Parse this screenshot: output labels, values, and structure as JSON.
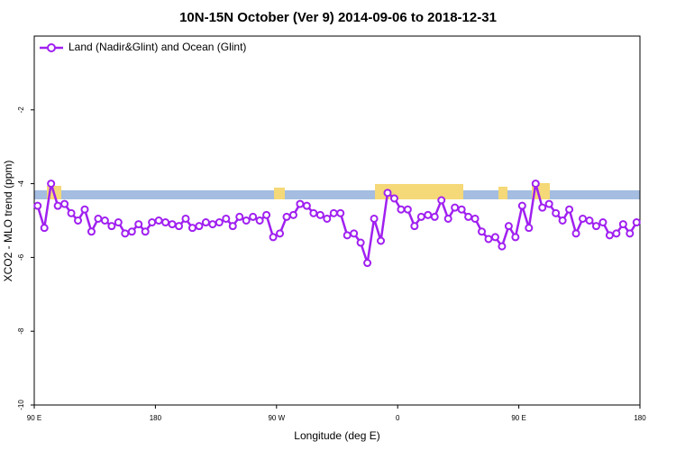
{
  "chart_data": {
    "type": "line",
    "title": "10N-15N October (Ver 9)   2014-09-06 to 2018-12-31",
    "x_label": "Longitude (deg E)",
    "y_label": "XCO2 - MLO trend (ppm)",
    "xlim": [
      90,
      540
    ],
    "xticks": [
      {
        "value": 90,
        "label": "90 E"
      },
      180,
      {
        "value": 270,
        "label": "90 W"
      },
      {
        "value": 360,
        "label": "0"
      },
      {
        "value": 450,
        "label": "90 E"
      },
      {
        "value": 540,
        "label": "180"
      }
    ],
    "ylim": [
      -10,
      0
    ],
    "yticks": [
      -10,
      -8,
      -6,
      -4,
      -2
    ],
    "legend": "top-left",
    "x": [
      92.5,
      97.5,
      102.5,
      107.5,
      112.5,
      117.5,
      122.5,
      127.5,
      132.5,
      137.5,
      142.5,
      147.5,
      152.5,
      157.5,
      162.5,
      167.5,
      172.5,
      177.5,
      182.5,
      187.5,
      192.5,
      197.5,
      202.5,
      207.5,
      212.5,
      217.5,
      222.5,
      227.5,
      232.5,
      237.5,
      242.5,
      247.5,
      252.5,
      257.5,
      262.5,
      267.5,
      272.5,
      277.5,
      282.5,
      287.5,
      292.5,
      297.5,
      302.5,
      307.5,
      312.5,
      317.5,
      322.5,
      327.5,
      332.5,
      337.5,
      342.5,
      347.5,
      352.5,
      357.5,
      362.5,
      367.5,
      372.5,
      377.5,
      382.5,
      387.5,
      392.5,
      397.5,
      402.5,
      407.5,
      412.5,
      417.5,
      422.5,
      427.5,
      432.5,
      437.5,
      442.5,
      447.5,
      452.5,
      457.5,
      462.5,
      467.5,
      472.5,
      477.5,
      482.5,
      487.5,
      492.5,
      497.5,
      502.5,
      507.5,
      512.5,
      517.5,
      522.5,
      527.5,
      532.5,
      537.5
    ],
    "series": [
      {
        "name": "Land (Nadir&Glint) and Ocean (Glint)",
        "color": "#a020f0",
        "values": [
          -4.6,
          -5.2,
          -4.0,
          -4.6,
          -4.55,
          -4.8,
          -5.0,
          -4.7,
          -5.3,
          -4.95,
          -5.0,
          -5.15,
          -5.05,
          -5.35,
          -5.3,
          -5.1,
          -5.3,
          -5.05,
          -5.0,
          -5.05,
          -5.1,
          -5.15,
          -4.95,
          -5.2,
          -5.15,
          -5.05,
          -5.1,
          -5.05,
          -4.95,
          -5.15,
          -4.9,
          -5.0,
          -4.9,
          -5.0,
          -4.85,
          -5.45,
          -5.35,
          -4.9,
          -4.85,
          -4.55,
          -4.6,
          -4.8,
          -4.85,
          -4.95,
          -4.8,
          -4.8,
          -5.4,
          -5.35,
          -5.6,
          -6.15,
          -4.95,
          -5.55,
          -4.25,
          -4.4,
          -4.7,
          -4.7,
          -5.15,
          -4.9,
          -4.85,
          -4.9,
          -4.45,
          -4.95,
          -4.65,
          -4.7,
          -4.9,
          -4.95,
          -5.3,
          -5.5,
          -5.45,
          -5.7,
          -5.15,
          -5.45,
          -4.6,
          -5.2,
          -4.0,
          -4.65,
          -4.55,
          -4.8,
          -5.0,
          -4.7,
          -5.35,
          -4.95,
          -5.0,
          -5.15,
          -5.05,
          -5.4,
          -5.35,
          -5.1,
          -5.35,
          -5.05
        ]
      }
    ]
  }
}
